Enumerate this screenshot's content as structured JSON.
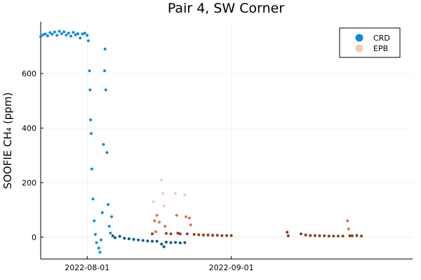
{
  "chart_data": {
    "type": "scatter",
    "title": "Pair 4, SW Corner",
    "xlabel": "",
    "ylabel": "SOOFIE CH₄ (ppm)",
    "x_type": "date",
    "xlim": [
      "2022-07-22",
      "2022-10-10"
    ],
    "ylim": [
      -80,
      790
    ],
    "x_ticks": [
      "2022-08-01",
      "2022-09-01"
    ],
    "y_ticks": [
      0,
      200,
      400,
      600
    ],
    "grid": true,
    "legend_position": "top-right",
    "series": [
      {
        "name": "CRD",
        "color": "#0a8ae0",
        "dark_color": "#09578f",
        "points": [
          {
            "x": "2022-07-22T00:00",
            "y": 735
          },
          {
            "x": "2022-07-22T12:00",
            "y": 742
          },
          {
            "x": "2022-07-23T00:00",
            "y": 745
          },
          {
            "x": "2022-07-23T12:00",
            "y": 738
          },
          {
            "x": "2022-07-24T00:00",
            "y": 750
          },
          {
            "x": "2022-07-24T12:00",
            "y": 744
          },
          {
            "x": "2022-07-25T00:00",
            "y": 752
          },
          {
            "x": "2022-07-25T12:00",
            "y": 740
          },
          {
            "x": "2022-07-26T00:00",
            "y": 755
          },
          {
            "x": "2022-07-26T12:00",
            "y": 746
          },
          {
            "x": "2022-07-27T00:00",
            "y": 753
          },
          {
            "x": "2022-07-27T12:00",
            "y": 741
          },
          {
            "x": "2022-07-28T00:00",
            "y": 748
          },
          {
            "x": "2022-07-28T12:00",
            "y": 737
          },
          {
            "x": "2022-07-29T00:00",
            "y": 751
          },
          {
            "x": "2022-07-29T12:00",
            "y": 742
          },
          {
            "x": "2022-07-30T00:00",
            "y": 746
          },
          {
            "x": "2022-07-30T12:00",
            "y": 730
          },
          {
            "x": "2022-07-31T00:00",
            "y": 745
          },
          {
            "x": "2022-07-31T12:00",
            "y": 748
          },
          {
            "x": "2022-08-01T00:00",
            "y": 740
          },
          {
            "x": "2022-08-01T06:00",
            "y": 720
          },
          {
            "x": "2022-08-01T12:00",
            "y": 610
          },
          {
            "x": "2022-08-01T15:00",
            "y": 540
          },
          {
            "x": "2022-08-01T18:00",
            "y": 430
          },
          {
            "x": "2022-08-01T21:00",
            "y": 380
          },
          {
            "x": "2022-08-02T00:00",
            "y": 250
          },
          {
            "x": "2022-08-02T06:00",
            "y": 140
          },
          {
            "x": "2022-08-02T12:00",
            "y": 60
          },
          {
            "x": "2022-08-02T18:00",
            "y": 10
          },
          {
            "x": "2022-08-03T00:00",
            "y": -20
          },
          {
            "x": "2022-08-03T12:00",
            "y": -40
          },
          {
            "x": "2022-08-03T18:00",
            "y": -55
          },
          {
            "x": "2022-08-04T00:00",
            "y": -10
          },
          {
            "x": "2022-08-04T06:00",
            "y": 90
          },
          {
            "x": "2022-08-04T12:00",
            "y": 340
          },
          {
            "x": "2022-08-04T18:00",
            "y": 610
          },
          {
            "x": "2022-08-04T20:00",
            "y": 690
          },
          {
            "x": "2022-08-05T00:00",
            "y": 540
          },
          {
            "x": "2022-08-05T06:00",
            "y": 310
          },
          {
            "x": "2022-08-05T12:00",
            "y": 120
          },
          {
            "x": "2022-08-05T18:00",
            "y": 40
          },
          {
            "x": "2022-08-06T00:00",
            "y": 15
          },
          {
            "x": "2022-08-06T06:00",
            "y": 75
          },
          {
            "x": "2022-08-06T12:00",
            "y": 5
          },
          {
            "x": "2022-08-07T00:00",
            "y": -2
          },
          {
            "x": "2022-08-08T00:00",
            "y": 3
          },
          {
            "x": "2022-08-09T00:00",
            "y": -4
          },
          {
            "x": "2022-08-10T00:00",
            "y": -6
          },
          {
            "x": "2022-08-11T00:00",
            "y": -8
          },
          {
            "x": "2022-08-12T00:00",
            "y": -10
          },
          {
            "x": "2022-08-13T00:00",
            "y": -12
          },
          {
            "x": "2022-08-14T00:00",
            "y": -14
          },
          {
            "x": "2022-08-15T00:00",
            "y": -15
          },
          {
            "x": "2022-08-16T00:00",
            "y": -15
          },
          {
            "x": "2022-08-17T00:00",
            "y": -25
          },
          {
            "x": "2022-08-17T12:00",
            "y": -35
          },
          {
            "x": "2022-08-18T00:00",
            "y": -18
          },
          {
            "x": "2022-08-19T00:00",
            "y": -20
          },
          {
            "x": "2022-08-20T00:00",
            "y": -19
          },
          {
            "x": "2022-08-21T00:00",
            "y": -21
          },
          {
            "x": "2022-08-22T00:00",
            "y": -20
          }
        ]
      },
      {
        "name": "EPB",
        "color": "#e26f46",
        "light_color": "#f0c9b5",
        "dark_color": "#8e3d1f",
        "points": [
          {
            "x": "2022-08-15T00:00",
            "y": 12
          },
          {
            "x": "2022-08-15T06:00",
            "y": 130
          },
          {
            "x": "2022-08-15T12:00",
            "y": 60
          },
          {
            "x": "2022-08-15T18:00",
            "y": 20
          },
          {
            "x": "2022-08-16T00:00",
            "y": 80
          },
          {
            "x": "2022-08-16T12:00",
            "y": 55
          },
          {
            "x": "2022-08-17T00:00",
            "y": 210
          },
          {
            "x": "2022-08-17T06:00",
            "y": 160
          },
          {
            "x": "2022-08-17T12:00",
            "y": 115
          },
          {
            "x": "2022-08-17T18:00",
            "y": 40
          },
          {
            "x": "2022-08-18T00:00",
            "y": 14
          },
          {
            "x": "2022-08-19T00:00",
            "y": 12
          },
          {
            "x": "2022-08-20T00:00",
            "y": 160
          },
          {
            "x": "2022-08-20T06:00",
            "y": 80
          },
          {
            "x": "2022-08-20T12:00",
            "y": 15
          },
          {
            "x": "2022-08-21T00:00",
            "y": 12
          },
          {
            "x": "2022-08-22T00:00",
            "y": 155
          },
          {
            "x": "2022-08-22T06:00",
            "y": 75
          },
          {
            "x": "2022-08-22T12:00",
            "y": 12
          },
          {
            "x": "2022-08-23T00:00",
            "y": 70
          },
          {
            "x": "2022-08-23T06:00",
            "y": 45
          },
          {
            "x": "2022-08-24T00:00",
            "y": 10
          },
          {
            "x": "2022-08-25T00:00",
            "y": 9
          },
          {
            "x": "2022-08-26T00:00",
            "y": 8
          },
          {
            "x": "2022-08-27T00:00",
            "y": 8
          },
          {
            "x": "2022-08-28T00:00",
            "y": 7
          },
          {
            "x": "2022-08-29T00:00",
            "y": 7
          },
          {
            "x": "2022-08-30T00:00",
            "y": 6
          },
          {
            "x": "2022-08-31T00:00",
            "y": 6
          },
          {
            "x": "2022-09-01T00:00",
            "y": 6
          },
          {
            "x": "2022-09-13T00:00",
            "y": 18
          },
          {
            "x": "2022-09-13T06:00",
            "y": 5
          },
          {
            "x": "2022-09-16T00:00",
            "y": 12
          },
          {
            "x": "2022-09-17T00:00",
            "y": 8
          },
          {
            "x": "2022-09-18T00:00",
            "y": 6
          },
          {
            "x": "2022-09-19T00:00",
            "y": 6
          },
          {
            "x": "2022-09-20T00:00",
            "y": 5
          },
          {
            "x": "2022-09-21T00:00",
            "y": 5
          },
          {
            "x": "2022-09-22T00:00",
            "y": 4
          },
          {
            "x": "2022-09-23T00:00",
            "y": 4
          },
          {
            "x": "2022-09-24T00:00",
            "y": 4
          },
          {
            "x": "2022-09-25T00:00",
            "y": 4
          },
          {
            "x": "2022-09-26T00:00",
            "y": 60
          },
          {
            "x": "2022-09-26T06:00",
            "y": 30
          },
          {
            "x": "2022-09-26T12:00",
            "y": 5
          },
          {
            "x": "2022-09-27T00:00",
            "y": 5
          },
          {
            "x": "2022-09-28T00:00",
            "y": 6
          },
          {
            "x": "2022-09-29T00:00",
            "y": 4
          }
        ]
      }
    ]
  }
}
